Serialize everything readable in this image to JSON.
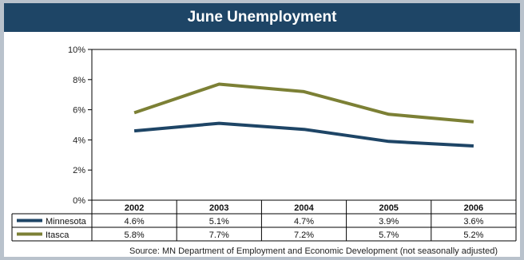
{
  "chart_data": {
    "type": "line",
    "title": "June Unemployment",
    "categories": [
      "2002",
      "2003",
      "2004",
      "2005",
      "2006"
    ],
    "ylim": [
      0,
      10
    ],
    "yticks": [
      "0%",
      "2%",
      "4%",
      "6%",
      "8%",
      "10%"
    ],
    "grid": true,
    "legend": "data table below chart",
    "series": [
      {
        "name": "Minnesota",
        "color": "#1e4566",
        "values": [
          4.6,
          5.1,
          4.7,
          3.9,
          3.6
        ],
        "labels": [
          "4.6%",
          "5.1%",
          "4.7%",
          "3.9%",
          "3.6%"
        ]
      },
      {
        "name": "Itasca",
        "color": "#7c8035",
        "values": [
          5.8,
          7.7,
          7.2,
          5.7,
          5.2
        ],
        "labels": [
          "5.8%",
          "7.7%",
          "7.2%",
          "5.7%",
          "5.2%"
        ]
      }
    ]
  },
  "source": "Source:  MN Department of Employment and Economic Development (not seasonally adjusted)",
  "colors": {
    "header": "#1e4566",
    "page": "#b9c2cc"
  }
}
